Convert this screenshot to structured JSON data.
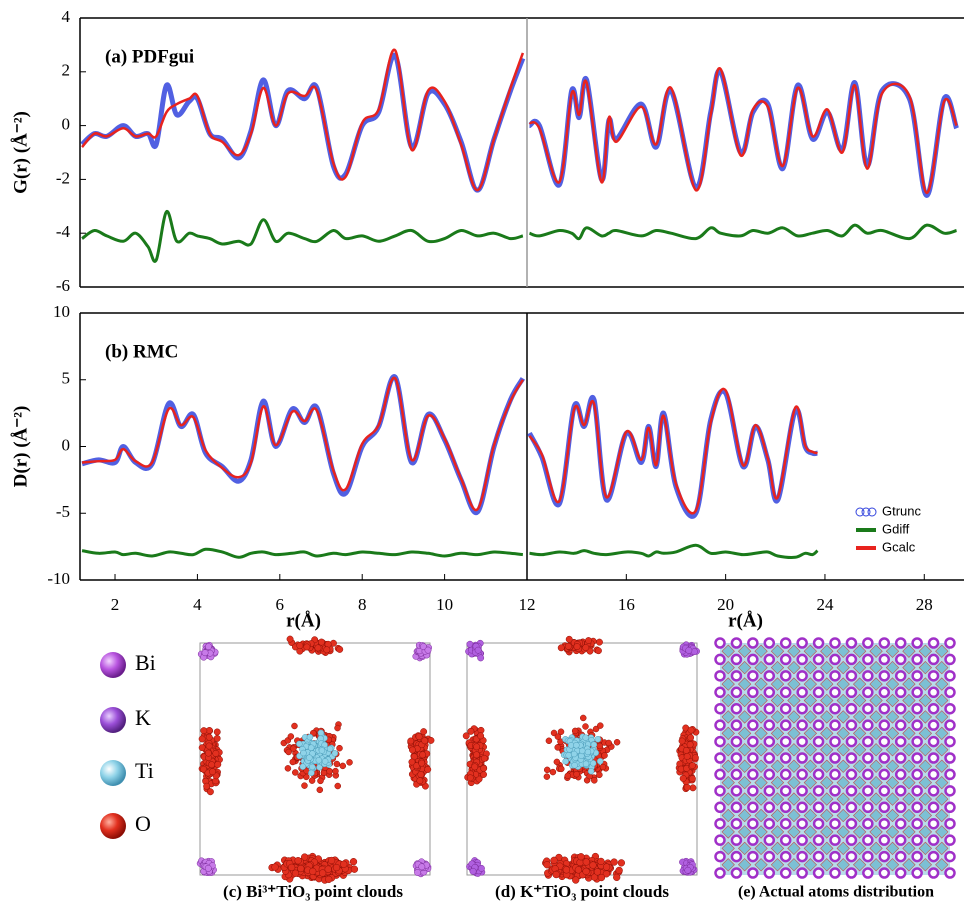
{
  "chart_data": [
    {
      "type": "line",
      "panel_label": "(a) PDFgui",
      "ylabel": "G(r) (Å⁻²)",
      "xlim": [
        1.15,
        12
      ],
      "ylim": [
        -6,
        4
      ],
      "yticks": [
        -6,
        -4,
        -2,
        0,
        2,
        4
      ],
      "x": [
        1.2,
        1.5,
        1.8,
        2.2,
        2.5,
        2.8,
        3.0,
        3.25,
        3.5,
        3.8,
        4.0,
        4.3,
        4.6,
        5.0,
        5.3,
        5.6,
        5.9,
        6.2,
        6.6,
        6.9,
        7.3,
        7.6,
        8.0,
        8.4,
        8.8,
        9.2,
        9.6,
        10.0,
        10.4,
        10.8,
        11.2,
        11.6,
        11.9
      ],
      "series": [
        {
          "color": "#3344dd",
          "values": [
            -0.7,
            -0.3,
            -0.4,
            0.0,
            -0.4,
            -0.3,
            -0.7,
            1.5,
            0.4,
            0.9,
            1.0,
            -0.3,
            -0.5,
            -1.2,
            -0.2,
            1.7,
            0.0,
            1.3,
            1.0,
            1.4,
            -1.5,
            -1.8,
            0.0,
            0.5,
            2.6,
            -0.8,
            1.2,
            0.8,
            -0.6,
            -2.4,
            -0.5,
            1.3,
            2.5
          ]
        },
        {
          "color": "#1a7a1a",
          "values": [
            -4.2,
            -3.9,
            -4.1,
            -4.3,
            -4.0,
            -4.5,
            -5.0,
            -3.2,
            -4.3,
            -4.0,
            -4.1,
            -4.2,
            -4.4,
            -4.3,
            -4.4,
            -3.5,
            -4.3,
            -4.0,
            -4.2,
            -4.3,
            -3.9,
            -4.2,
            -4.1,
            -4.3,
            -4.1,
            -3.9,
            -4.3,
            -4.2,
            -3.9,
            -4.1,
            -4.0,
            -4.2,
            -4.1
          ]
        },
        {
          "color": "#e8231e",
          "values": [
            -0.8,
            -0.3,
            -0.4,
            -0.1,
            -0.4,
            -0.3,
            -0.4,
            0.5,
            0.8,
            1.0,
            1.1,
            -0.3,
            -0.6,
            -1.1,
            -0.3,
            1.4,
            0.0,
            1.2,
            1.1,
            1.3,
            -1.4,
            -1.9,
            0.1,
            0.6,
            2.8,
            -0.9,
            1.3,
            0.9,
            -0.7,
            -2.4,
            -0.5,
            1.4,
            2.7
          ]
        }
      ]
    },
    {
      "type": "line",
      "xlim": [
        12,
        29.6
      ],
      "ylim": [
        -6,
        4
      ],
      "x": [
        12.1,
        12.5,
        13.3,
        13.8,
        14.1,
        14.4,
        15.0,
        15.3,
        15.6,
        16.6,
        17.2,
        17.8,
        18.8,
        19.4,
        19.8,
        20.6,
        21.1,
        21.7,
        22.3,
        22.9,
        23.5,
        24.1,
        24.7,
        25.2,
        25.7,
        26.3,
        27.4,
        28.1,
        28.8,
        29.3
      ],
      "series": [
        {
          "color": "#3344dd",
          "values": [
            0.0,
            0.0,
            -2.2,
            1.3,
            0.3,
            1.7,
            -2.0,
            0.2,
            -0.5,
            0.8,
            -0.8,
            1.3,
            -2.3,
            0.5,
            2.0,
            -1.0,
            0.5,
            0.8,
            -1.6,
            1.5,
            -0.5,
            0.5,
            -0.9,
            1.6,
            -1.5,
            1.3,
            1.0,
            -2.6,
            1.0,
            -0.1
          ]
        },
        {
          "color": "#1a7a1a",
          "values": [
            -4.0,
            -4.1,
            -3.9,
            -4.0,
            -4.2,
            -3.8,
            -4.1,
            -4.0,
            -3.9,
            -4.1,
            -3.9,
            -4.0,
            -4.2,
            -3.8,
            -4.0,
            -4.1,
            -3.9,
            -4.0,
            -3.8,
            -4.1,
            -4.0,
            -3.9,
            -4.1,
            -3.7,
            -4.0,
            -3.9,
            -4.2,
            -3.7,
            -4.0,
            -3.9
          ]
        },
        {
          "color": "#e8231e",
          "values": [
            0.1,
            -0.1,
            -2.1,
            1.2,
            0.4,
            1.6,
            -2.1,
            0.3,
            -0.6,
            0.7,
            -0.7,
            1.4,
            -2.4,
            0.4,
            2.1,
            -1.1,
            0.6,
            0.7,
            -1.5,
            1.4,
            -0.4,
            0.6,
            -1.0,
            1.5,
            -1.6,
            1.2,
            1.1,
            -2.5,
            0.9,
            0.0
          ]
        }
      ]
    },
    {
      "type": "line",
      "panel_label": "(b) RMC",
      "ylabel": "D(r) (Å⁻²)",
      "xlabel": "r(Å)",
      "xlim": [
        1.15,
        12
      ],
      "ylim": [
        -10,
        10
      ],
      "yticks": [
        -10,
        -5,
        0,
        5,
        10
      ],
      "xticks": [
        2,
        4,
        6,
        8,
        10,
        12
      ],
      "x": [
        1.2,
        1.6,
        2.0,
        2.2,
        2.5,
        2.9,
        3.3,
        3.6,
        3.9,
        4.2,
        4.6,
        5.0,
        5.3,
        5.6,
        5.9,
        6.3,
        6.6,
        6.9,
        7.3,
        7.6,
        8.0,
        8.4,
        8.8,
        9.2,
        9.6,
        10.0,
        10.4,
        10.8,
        11.2,
        11.6,
        11.9
      ],
      "series": [
        {
          "color": "#3344dd",
          "values": [
            -1.3,
            -1.0,
            -1.2,
            0.0,
            -1.2,
            -1.3,
            3.2,
            1.5,
            2.4,
            -0.5,
            -1.5,
            -2.6,
            -1.0,
            3.4,
            0.0,
            2.8,
            1.8,
            2.9,
            -2.0,
            -3.5,
            0.0,
            1.5,
            5.2,
            -1.2,
            2.4,
            0.5,
            -2.5,
            -4.9,
            0.0,
            3.5,
            5.1
          ]
        },
        {
          "color": "#1a7a1a",
          "values": [
            -7.8,
            -8.0,
            -7.9,
            -8.1,
            -8.0,
            -8.2,
            -7.9,
            -8.0,
            -8.1,
            -7.7,
            -7.9,
            -8.3,
            -8.0,
            -7.9,
            -8.1,
            -8.0,
            -7.9,
            -8.2,
            -8.0,
            -8.1,
            -7.9,
            -8.0,
            -8.1,
            -7.9,
            -8.0,
            -8.2,
            -8.0,
            -8.1,
            -7.9,
            -8.0,
            -8.1
          ]
        },
        {
          "color": "#e8231e",
          "values": [
            -1.2,
            -1.1,
            -1.0,
            -0.2,
            -1.1,
            -1.2,
            2.8,
            1.6,
            2.2,
            -0.3,
            -1.6,
            -2.3,
            -1.2,
            3.0,
            0.1,
            2.6,
            1.9,
            2.7,
            -1.8,
            -3.2,
            0.2,
            1.6,
            5.1,
            -1.0,
            2.3,
            0.6,
            -2.4,
            -4.7,
            0.1,
            3.4,
            5.0
          ]
        }
      ]
    },
    {
      "type": "line",
      "xlabel": "r(Å)",
      "xlim": [
        12,
        29.6
      ],
      "ylim": [
        -10,
        10
      ],
      "xticks": [
        16,
        20,
        24,
        28
      ],
      "x": [
        12.1,
        12.6,
        13.3,
        13.9,
        14.3,
        14.7,
        15.2,
        16.0,
        16.6,
        16.9,
        17.2,
        17.5,
        18.0,
        18.8,
        19.4,
        20.0,
        20.7,
        21.2,
        21.7,
        22.1,
        22.8,
        23.2,
        23.5,
        23.7
      ],
      "series": [
        {
          "name": "Gtrunc",
          "color": "#3344dd",
          "values": [
            1.0,
            -0.8,
            -4.3,
            3.0,
            1.5,
            3.5,
            -4.0,
            1.0,
            -1.2,
            1.5,
            -1.5,
            2.5,
            -3.0,
            -5.0,
            2.0,
            4.0,
            -1.5,
            1.5,
            -1.0,
            -4.0,
            2.7,
            0.0,
            -0.5,
            -0.5
          ]
        },
        {
          "name": "Gdiff",
          "color": "#1a7a1a",
          "values": [
            -8.0,
            -8.1,
            -7.9,
            -8.0,
            -7.8,
            -8.0,
            -8.1,
            -7.9,
            -8.0,
            -8.2,
            -7.9,
            -8.0,
            -7.9,
            -7.4,
            -8.0,
            -7.9,
            -8.1,
            -8.0,
            -7.9,
            -8.2,
            -8.3,
            -8.0,
            -8.1,
            -7.8
          ]
        },
        {
          "name": "Gcalc",
          "color": "#e8231e",
          "values": [
            0.8,
            -0.6,
            -4.1,
            2.8,
            1.6,
            3.2,
            -3.8,
            1.1,
            -1.0,
            1.4,
            -1.4,
            2.3,
            -2.8,
            -4.8,
            1.8,
            4.2,
            -1.4,
            1.6,
            -0.9,
            -3.8,
            2.9,
            0.1,
            -0.4,
            -0.5
          ]
        }
      ]
    }
  ],
  "atom_legend": [
    "Bi",
    "K",
    "Ti",
    "O"
  ],
  "captions": [
    "(c) Bi³⁺TiO₃ point clouds",
    "(d) K⁺TiO₃ point clouds",
    "(e) Actual atoms distribution"
  ]
}
